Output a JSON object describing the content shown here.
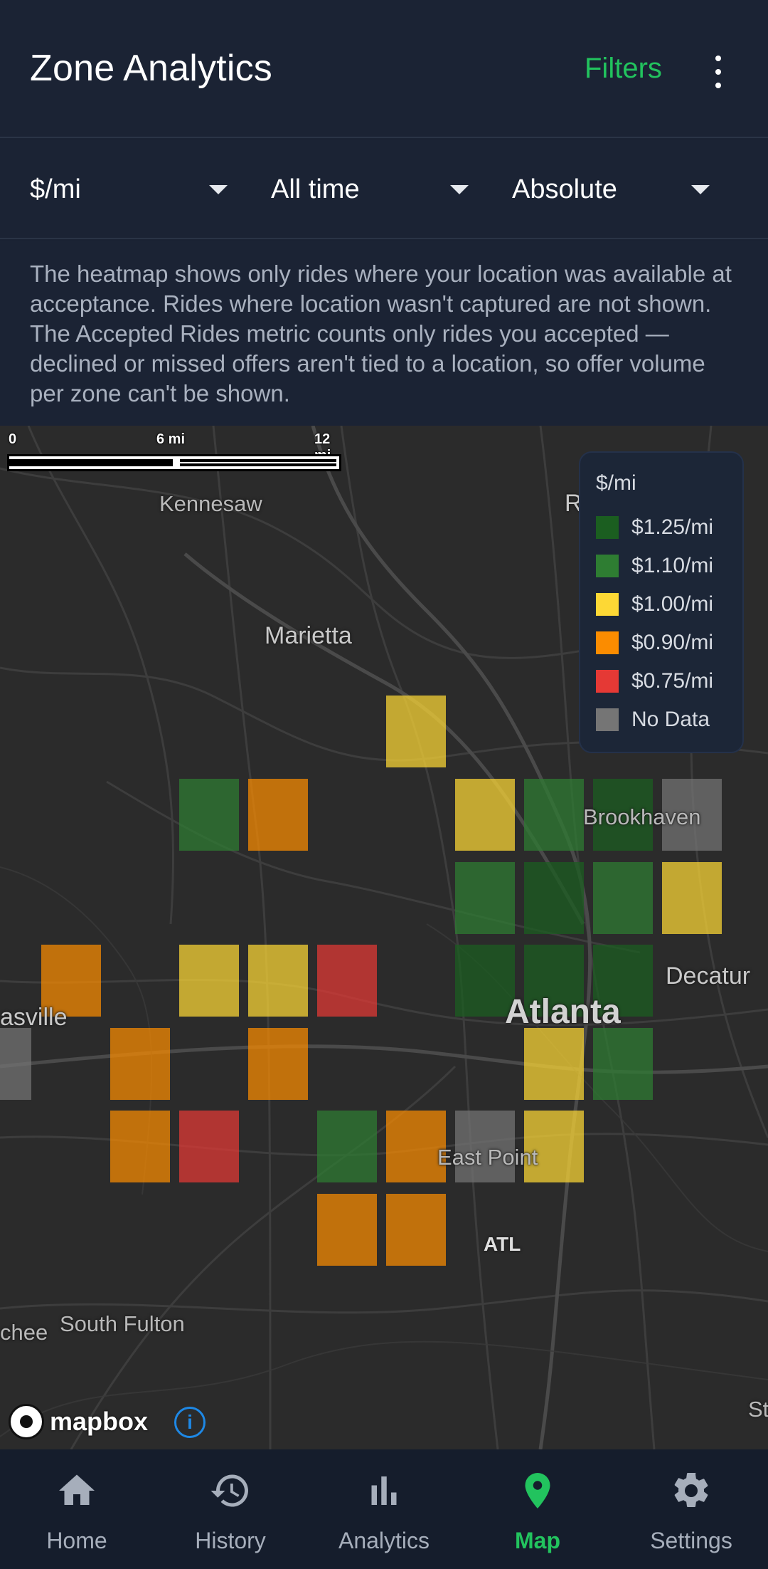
{
  "app": {
    "title": "Zone Analytics",
    "filters_label": "Filters",
    "accent_color": "#22c35e"
  },
  "selectors": {
    "metric": "$/mi",
    "period": "All time",
    "mode": "Absolute"
  },
  "info_text": "The heatmap shows only rides where your location was available at acceptance. Rides where location wasn't captured are not shown. The Accepted Rides metric counts only rides you accepted — declined or missed offers aren't tied to a location, so offer volume per zone can't be shown.",
  "map": {
    "scale": {
      "t0": "0",
      "t1": "6 mi",
      "t2": "12 mi"
    },
    "places": {
      "kennesaw": "Kennesaw",
      "marietta": "Marietta",
      "brookhaven": "Brookhaven",
      "decatur": "Decatur",
      "atlanta": "Atlanta",
      "douglasville": "asville",
      "east_point": "East Point",
      "atl": "ATL",
      "south_fulton": "South Fulton",
      "chee": "chee",
      "edge_r": "R",
      "edge_st": "St"
    },
    "legend": {
      "title": "$/mi",
      "items": [
        {
          "label": "$1.25/mi",
          "color": "#1b5e20"
        },
        {
          "label": "$1.10/mi",
          "color": "#2e7d32"
        },
        {
          "label": "$1.00/mi",
          "color": "#fdd835"
        },
        {
          "label": "$0.90/mi",
          "color": "#fb8c00"
        },
        {
          "label": "$0.75/mi",
          "color": "#e53935"
        },
        {
          "label": "No Data",
          "color": "#757575"
        }
      ]
    },
    "attribution": "mapbox",
    "info_icon": "i"
  },
  "nav": {
    "items": [
      {
        "label": "Home",
        "icon": "home-icon"
      },
      {
        "label": "History",
        "icon": "history-icon"
      },
      {
        "label": "Analytics",
        "icon": "bar-chart-icon"
      },
      {
        "label": "Map",
        "icon": "map-pin-icon",
        "active": true
      },
      {
        "label": "Settings",
        "icon": "gear-icon"
      }
    ]
  }
}
